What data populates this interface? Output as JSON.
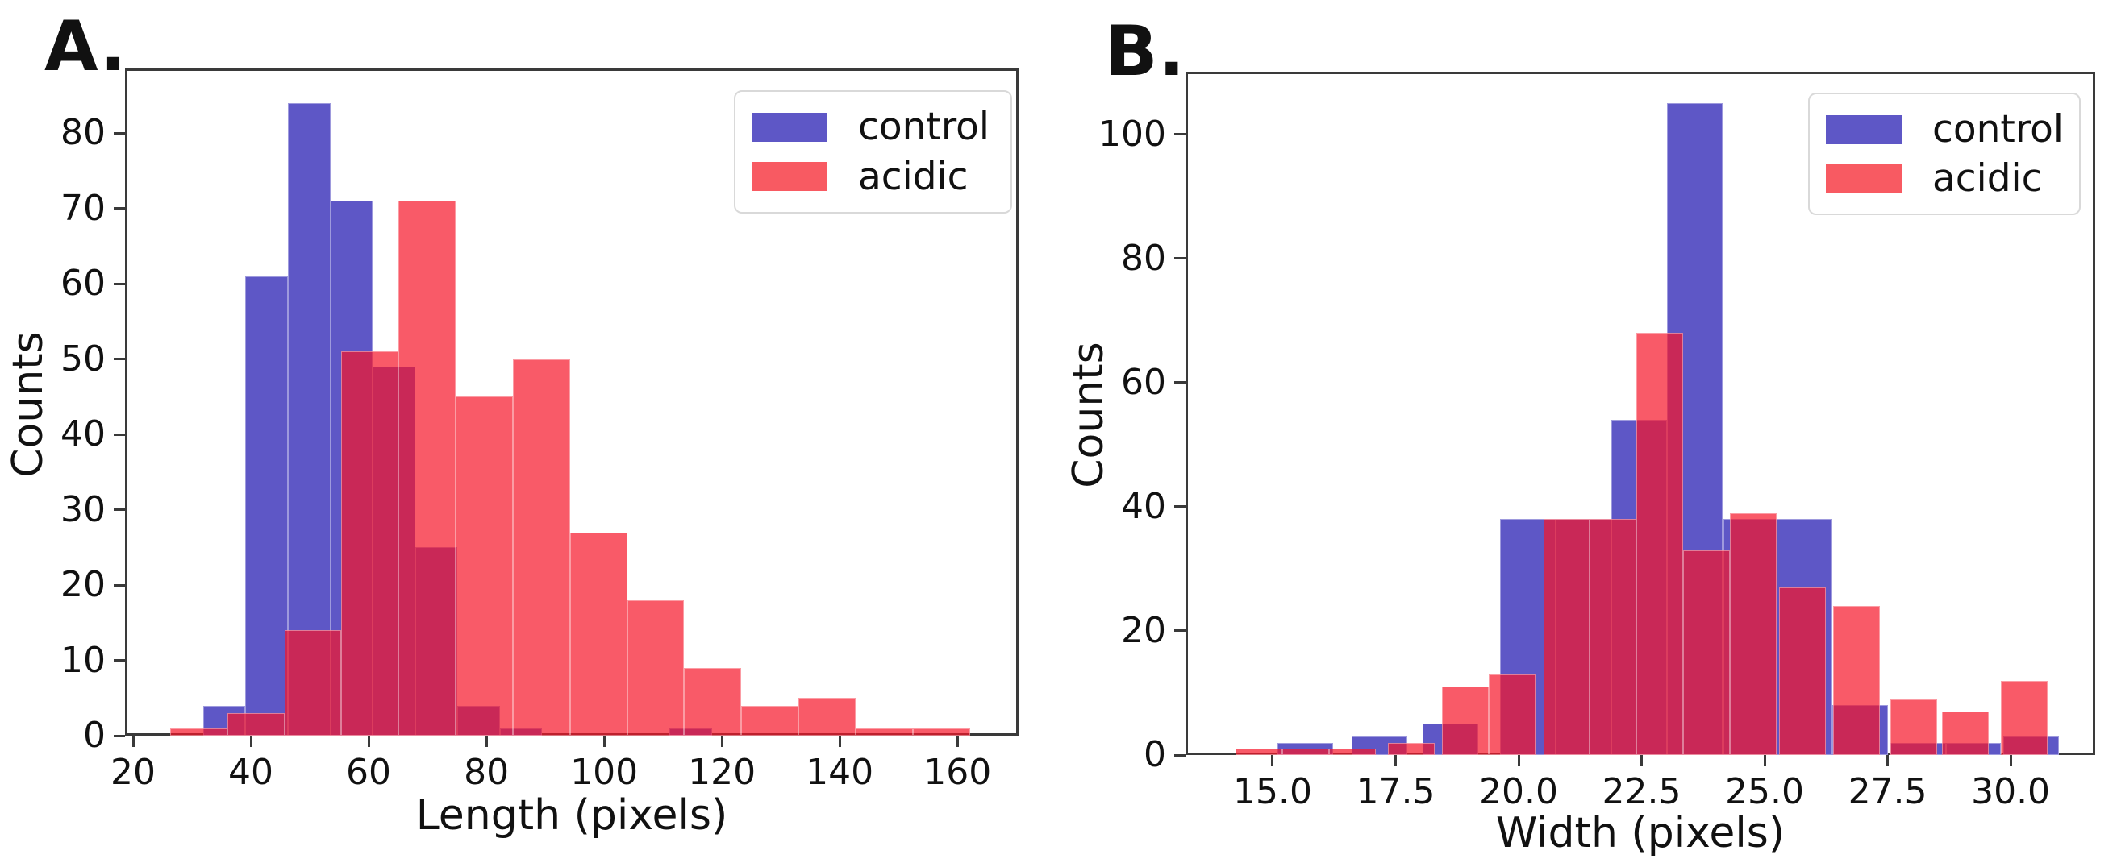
{
  "figure": {
    "background": "#ffffff",
    "spine_color": "#3a3a3a",
    "text_color": "#111111",
    "overlap_color_hex": "#c82857"
  },
  "chart_data": [
    {
      "type": "bar",
      "panel": "A.",
      "xlabel": "Length (pixels)",
      "ylabel": "Counts",
      "grid": false,
      "legend_position": "upper right",
      "xlim": [
        18.63,
        170.38
      ],
      "ylim": [
        0,
        88.6
      ],
      "box": {
        "l": 155,
        "t": 85,
        "r": 1263,
        "b": 913
      },
      "x_ticks": [
        {
          "v": 20,
          "label": "20"
        },
        {
          "v": 40,
          "label": "40"
        },
        {
          "v": 60,
          "label": "60"
        },
        {
          "v": 80,
          "label": "80"
        },
        {
          "v": 100,
          "label": "100"
        },
        {
          "v": 120,
          "label": "120"
        },
        {
          "v": 140,
          "label": "140"
        },
        {
          "v": 160,
          "label": "160"
        }
      ],
      "y_ticks": [
        {
          "v": 0,
          "label": "0"
        },
        {
          "v": 10,
          "label": "10"
        },
        {
          "v": 20,
          "label": "20"
        },
        {
          "v": 30,
          "label": "30"
        },
        {
          "v": 40,
          "label": "40"
        },
        {
          "v": 50,
          "label": "50"
        },
        {
          "v": 60,
          "label": "60"
        },
        {
          "v": 70,
          "label": "70"
        },
        {
          "v": 80,
          "label": "80"
        }
      ],
      "series": [
        {
          "name": "control",
          "color": "#5e57c6",
          "bin_width": 7.2,
          "bars": [
            {
              "x": 31.9,
              "h": 4
            },
            {
              "x": 39.1,
              "h": 61
            },
            {
              "x": 46.3,
              "h": 84
            },
            {
              "x": 53.5,
              "h": 71
            },
            {
              "x": 60.7,
              "h": 49
            },
            {
              "x": 67.9,
              "h": 25
            },
            {
              "x": 75.1,
              "h": 4
            },
            {
              "x": 82.3,
              "h": 1
            },
            {
              "x": 111.1,
              "h": 1
            }
          ]
        },
        {
          "name": "acidic",
          "color": "#f85a62",
          "overlay_color": "rgba(246,20,40,0.7)",
          "bin_width": 9.7,
          "bars": [
            {
              "x": 26.3,
              "h": 1
            },
            {
              "x": 36.0,
              "h": 3
            },
            {
              "x": 45.7,
              "h": 14
            },
            {
              "x": 55.4,
              "h": 51
            },
            {
              "x": 65.1,
              "h": 71
            },
            {
              "x": 74.8,
              "h": 45
            },
            {
              "x": 84.5,
              "h": 50
            },
            {
              "x": 94.2,
              "h": 27
            },
            {
              "x": 103.9,
              "h": 18
            },
            {
              "x": 113.6,
              "h": 9
            },
            {
              "x": 123.3,
              "h": 4
            },
            {
              "x": 133.0,
              "h": 5
            },
            {
              "x": 142.7,
              "h": 1
            },
            {
              "x": 152.4,
              "h": 1
            }
          ]
        }
      ]
    },
    {
      "type": "bar",
      "panel": "B.",
      "xlabel": "Width (pixels)",
      "ylabel": "Counts",
      "grid": false,
      "legend_position": "upper right",
      "xlim": [
        13.23,
        31.72
      ],
      "ylim": [
        0,
        110.1
      ],
      "box": {
        "l": 1470,
        "t": 89,
        "r": 2598,
        "b": 937
      },
      "x_ticks": [
        {
          "v": 15.0,
          "label": "15.0"
        },
        {
          "v": 17.5,
          "label": "17.5"
        },
        {
          "v": 20.0,
          "label": "20.0"
        },
        {
          "v": 22.5,
          "label": "22.5"
        },
        {
          "v": 25.0,
          "label": "25.0"
        },
        {
          "v": 27.5,
          "label": "27.5"
        },
        {
          "v": 30.0,
          "label": "30.0"
        }
      ],
      "y_ticks": [
        {
          "v": 0,
          "label": "0"
        },
        {
          "v": 20,
          "label": "20"
        },
        {
          "v": 40,
          "label": "40"
        },
        {
          "v": 60,
          "label": "60"
        },
        {
          "v": 80,
          "label": "80"
        },
        {
          "v": 100,
          "label": "100"
        }
      ],
      "series": [
        {
          "name": "control",
          "color": "#5e57c6",
          "bin_width": 1.13,
          "bars": [
            {
              "x": 15.1,
              "h": 2
            },
            {
              "x": 16.6,
              "h": 3
            },
            {
              "x": 18.05,
              "h": 5
            },
            {
              "x": 19.62,
              "h": 38
            },
            {
              "x": 20.75,
              "h": 38
            },
            {
              "x": 21.88,
              "h": 54
            },
            {
              "x": 23.01,
              "h": 105
            },
            {
              "x": 24.16,
              "h": 38
            },
            {
              "x": 25.25,
              "h": 38
            },
            {
              "x": 26.38,
              "h": 8
            },
            {
              "x": 27.55,
              "h": 2
            },
            {
              "x": 28.68,
              "h": 2
            },
            {
              "x": 29.85,
              "h": 3
            }
          ]
        },
        {
          "name": "acidic",
          "color": "#f85a62",
          "overlay_color": "rgba(246,20,40,0.7)",
          "bin_width": 0.95,
          "bars": [
            {
              "x": 14.25,
              "h": 1
            },
            {
              "x": 15.2,
              "h": 1
            },
            {
              "x": 16.15,
              "h": 1
            },
            {
              "x": 17.35,
              "h": 2
            },
            {
              "x": 18.45,
              "h": 11
            },
            {
              "x": 19.4,
              "h": 13
            },
            {
              "x": 20.5,
              "h": 38
            },
            {
              "x": 21.45,
              "h": 38
            },
            {
              "x": 22.4,
              "h": 68
            },
            {
              "x": 23.35,
              "h": 33
            },
            {
              "x": 24.3,
              "h": 39
            },
            {
              "x": 25.3,
              "h": 27
            },
            {
              "x": 26.4,
              "h": 24
            },
            {
              "x": 27.55,
              "h": 9
            },
            {
              "x": 28.6,
              "h": 7
            },
            {
              "x": 29.8,
              "h": 12
            }
          ]
        }
      ]
    }
  ]
}
